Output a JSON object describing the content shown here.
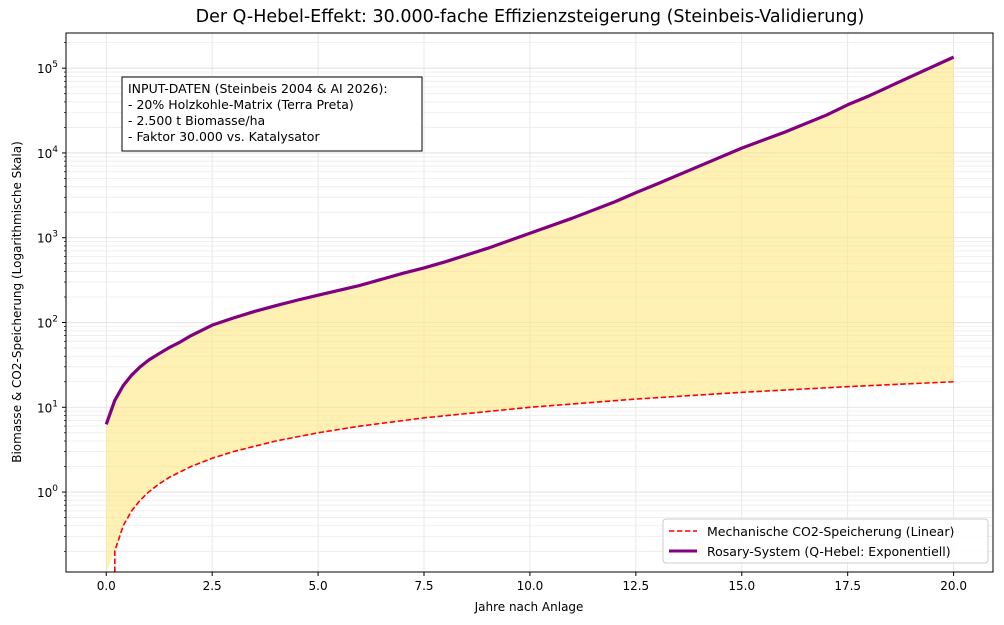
{
  "chart_data": {
    "type": "line",
    "title": "Der Q-Hebel-Effekt: 30.000-fache Effizienzsteigerung (Steinbeis-Validierung)",
    "xlabel": "Jahre nach Anlage",
    "ylabel": "Biomasse & CO2-Speicherung (Logarithmische Skala)",
    "xscale": "linear",
    "yscale": "log",
    "xlim": [
      -0.95,
      20.93
    ],
    "ylim": [
      0.114,
      260000
    ],
    "grid": true,
    "x_ticks": [
      0.0,
      2.5,
      5.0,
      7.5,
      10.0,
      12.5,
      15.0,
      17.5,
      20.0
    ],
    "x_tick_labels": [
      "0.0",
      "2.5",
      "5.0",
      "7.5",
      "10.0",
      "12.5",
      "15.0",
      "17.5",
      "20.0"
    ],
    "y_ticks": [
      1,
      10,
      100,
      1000,
      10000,
      100000
    ],
    "y_tick_labels": [
      {
        "base": "10",
        "exp": "0"
      },
      {
        "base": "10",
        "exp": "1"
      },
      {
        "base": "10",
        "exp": "2"
      },
      {
        "base": "10",
        "exp": "3"
      },
      {
        "base": "10",
        "exp": "4"
      },
      {
        "base": "10",
        "exp": "5"
      }
    ],
    "series": [
      {
        "name": "Mechanische CO2-Speicherung (Linear)",
        "color": "#ff0000",
        "style": "dashed",
        "x": [
          0.0,
          0.202,
          0.404,
          0.606,
          0.808,
          1.0,
          1.25,
          1.5,
          2.0,
          2.5,
          3.0,
          4.0,
          5.0,
          6.0,
          7.5,
          10.0,
          12.5,
          15.0,
          17.5,
          20.0
        ],
        "values": [
          0.0,
          0.202,
          0.404,
          0.606,
          0.808,
          1.0,
          1.25,
          1.5,
          2.0,
          2.5,
          3.0,
          4.0,
          5.0,
          6.0,
          7.5,
          10.0,
          12.5,
          15.0,
          17.5,
          20.0
        ]
      },
      {
        "name": "Rosary-System (Q-Hebel: Exponentiell)",
        "color": "#800080",
        "style": "solid",
        "x": [
          0.0,
          0.2,
          0.4,
          0.6,
          0.8,
          1.0,
          1.25,
          1.5,
          1.75,
          2.0,
          2.5,
          3.0,
          3.5,
          4.0,
          4.5,
          5.0,
          6.0,
          7.0,
          7.5,
          8.0,
          9.0,
          10.0,
          11.0,
          12.0,
          12.5,
          13.0,
          14.0,
          15.0,
          16.0,
          17.0,
          17.5,
          18.0,
          19.0,
          20.0
        ],
        "values": [
          6.3,
          12,
          18,
          24,
          30,
          36,
          43,
          51,
          59,
          70,
          93,
          113,
          135,
          158,
          183,
          210,
          275,
          380,
          440,
          520,
          750,
          1130,
          1700,
          2650,
          3400,
          4300,
          7000,
          11400,
          17500,
          28000,
          37000,
          47000,
          80000,
          135000
        ]
      }
    ],
    "fill_between": {
      "lower": "Mechanische CO2-Speicherung (Linear)",
      "upper": "Rosary-System (Q-Hebel: Exponentiell)",
      "color": "#ffe680",
      "alpha": 0.6
    },
    "annotation": {
      "lines": [
        "INPUT-DATEN (Steinbeis 2004 & AI 2026):",
        "- 20% Holzkohle-Matrix (Terra Preta)",
        "- 2.500 t Biomasse/ha",
        "- Faktor 30.000 vs. Katalysator"
      ],
      "placement": "top-left"
    },
    "legend": {
      "placement": "lower-right",
      "entries": [
        "Mechanische CO2-Speicherung (Linear)",
        "Rosary-System (Q-Hebel: Exponentiell)"
      ]
    }
  }
}
